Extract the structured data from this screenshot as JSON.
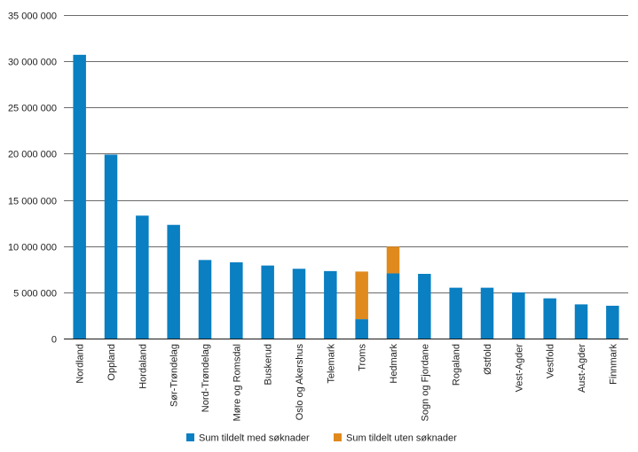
{
  "chart_data": {
    "type": "bar",
    "stacked": true,
    "title": "",
    "xlabel": "",
    "ylabel": "",
    "ylim": [
      0,
      35000000
    ],
    "yticks": [
      0,
      5000000,
      10000000,
      15000000,
      20000000,
      25000000,
      30000000,
      35000000
    ],
    "ytick_labels": [
      "0",
      "5 000 000",
      "10 000 000",
      "15 000 000",
      "20 000 000",
      "25 000 000",
      "30 000 000",
      "35 000 000"
    ],
    "grid": true,
    "legend_position": "bottom",
    "categories": [
      "Nordland",
      "Oppland",
      "Hordaland",
      "Sør-Trøndelag",
      "Nord-Trøndelag",
      "Møre og Romsdal",
      "Buskerud",
      "Oslo og Akershus",
      "Telemark",
      "Troms",
      "Hedmark",
      "Sogn og Fjordane",
      "Rogaland",
      "Østfold",
      "Vest-Agder",
      "Vestfold",
      "Aust-Agder",
      "Finnmark"
    ],
    "series": [
      {
        "name": "Sum tildelt med søknader",
        "color": "#0a7fc2",
        "values": [
          30700000,
          19900000,
          13300000,
          12300000,
          8500000,
          8250000,
          7900000,
          7550000,
          7300000,
          2100000,
          7050000,
          7000000,
          5500000,
          5500000,
          5000000,
          4350000,
          3700000,
          3550000
        ]
      },
      {
        "name": "Sum tildelt uten søknader",
        "color": "#e08a1e",
        "values": [
          0,
          0,
          0,
          0,
          0,
          0,
          0,
          0,
          0,
          5150000,
          2900000,
          0,
          0,
          0,
          0,
          0,
          0,
          0
        ]
      }
    ]
  }
}
